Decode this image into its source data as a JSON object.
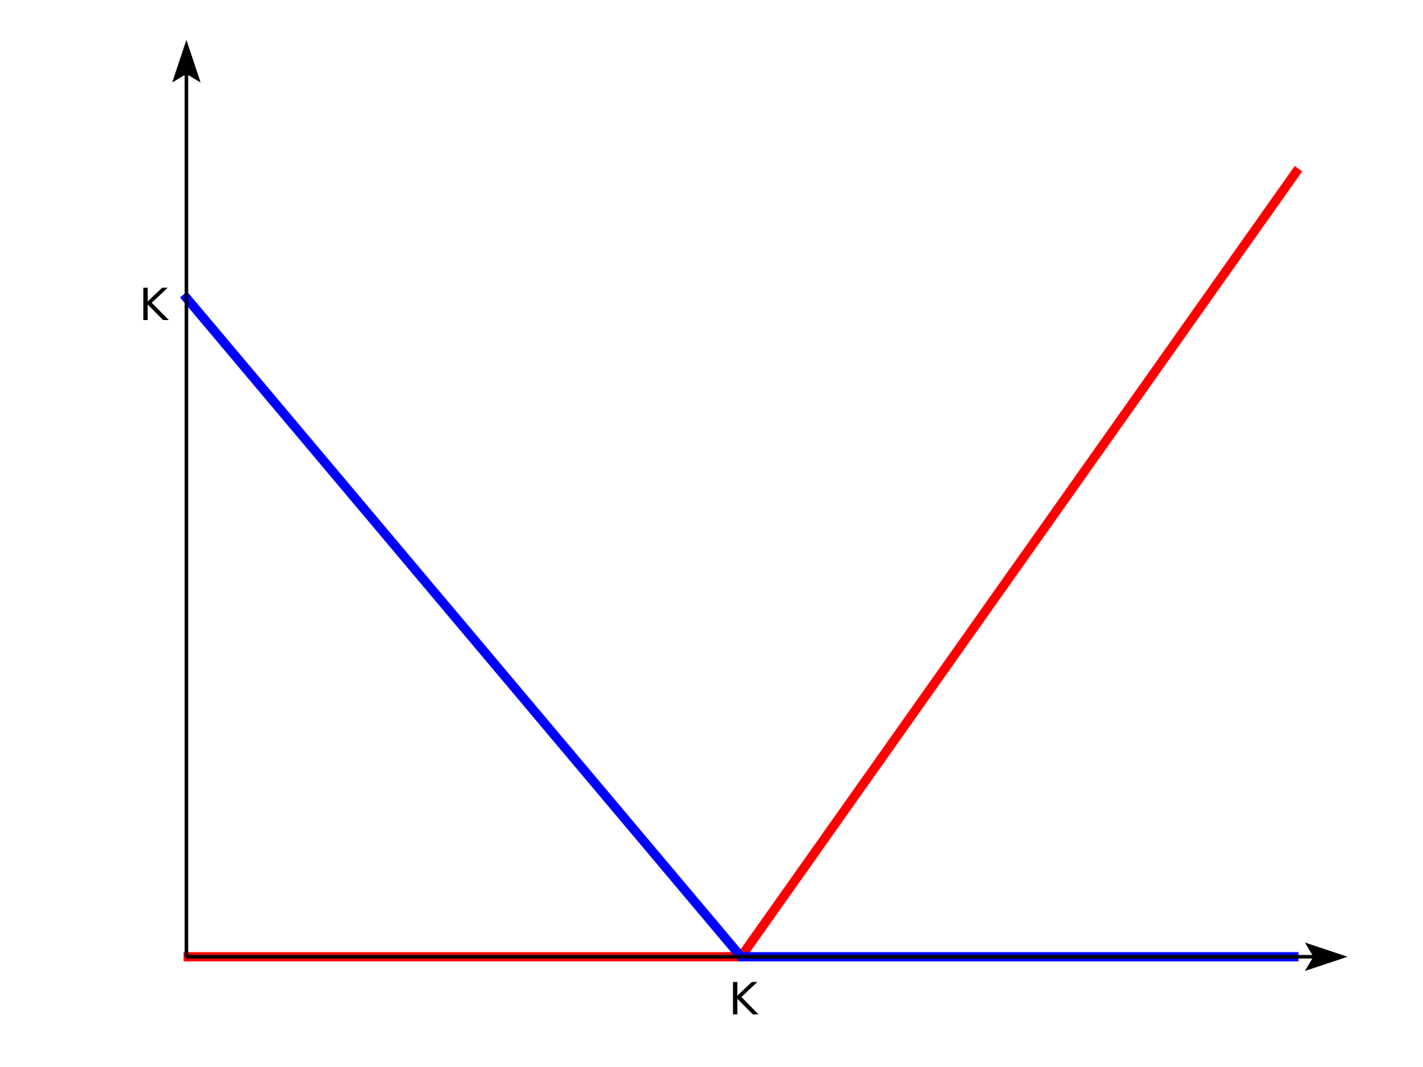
{
  "chart_data": {
    "type": "line",
    "title": "",
    "xlabel": "",
    "ylabel": "",
    "x_ticks": [
      {
        "value": 1,
        "label": "K"
      }
    ],
    "y_ticks": [
      {
        "value": 1,
        "label": "K"
      }
    ],
    "xlim": [
      0,
      2
    ],
    "ylim": [
      0,
      1
    ],
    "grid": false,
    "legend": "none",
    "axis_color": "#000000",
    "series": [
      {
        "color": "#ff0000",
        "x": [
          0,
          1,
          2
        ],
        "y": [
          0,
          0,
          1.19
        ]
      },
      {
        "color": "#0000ff",
        "x": [
          0,
          1,
          2
        ],
        "y": [
          1,
          0,
          0
        ]
      }
    ]
  }
}
